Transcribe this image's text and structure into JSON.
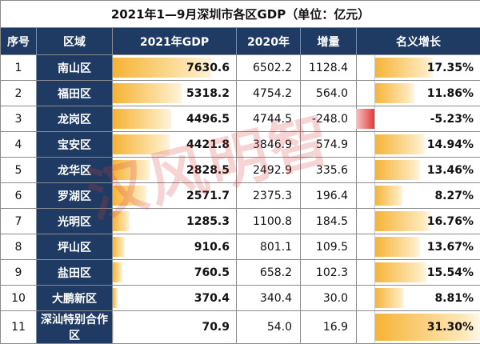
{
  "title": "2021年1—9月深圳市各区GDP（单位：亿元）",
  "headers": {
    "index": "序号",
    "region": "区域",
    "gdp2021": "2021年GDP",
    "gdp2020": "2020年",
    "increase": "增量",
    "growth": "名义增长"
  },
  "watermark": "汉风明智",
  "colors": {
    "header_bg": "#1f3b63",
    "bar_orange": "#f6b335",
    "negative_red": "#e23b3b"
  },
  "rows": [
    {
      "idx": "1",
      "region": "南山区",
      "gdp2021": "7630.6",
      "gdp2020": "6502.2",
      "increase": "1128.4",
      "growth": "17.35%",
      "gdp_value": 7630.6,
      "growth_value": 17.35
    },
    {
      "idx": "2",
      "region": "福田区",
      "gdp2021": "5318.2",
      "gdp2020": "4754.2",
      "increase": "564.0",
      "growth": "11.86%",
      "gdp_value": 5318.2,
      "growth_value": 11.86
    },
    {
      "idx": "3",
      "region": "龙岗区",
      "gdp2021": "4496.5",
      "gdp2020": "4744.5",
      "increase": "-248.0",
      "growth": "-5.23%",
      "gdp_value": 4496.5,
      "growth_value": -5.23
    },
    {
      "idx": "4",
      "region": "宝安区",
      "gdp2021": "4421.8",
      "gdp2020": "3846.9",
      "increase": "574.9",
      "growth": "14.94%",
      "gdp_value": 4421.8,
      "growth_value": 14.94
    },
    {
      "idx": "5",
      "region": "龙华区",
      "gdp2021": "2828.5",
      "gdp2020": "2492.9",
      "increase": "335.6",
      "growth": "13.46%",
      "gdp_value": 2828.5,
      "growth_value": 13.46
    },
    {
      "idx": "6",
      "region": "罗湖区",
      "gdp2021": "2571.7",
      "gdp2020": "2375.3",
      "increase": "196.4",
      "growth": "8.27%",
      "gdp_value": 2571.7,
      "growth_value": 8.27
    },
    {
      "idx": "7",
      "region": "光明区",
      "gdp2021": "1285.3",
      "gdp2020": "1100.8",
      "increase": "184.5",
      "growth": "16.76%",
      "gdp_value": 1285.3,
      "growth_value": 16.76
    },
    {
      "idx": "8",
      "region": "坪山区",
      "gdp2021": "910.6",
      "gdp2020": "801.1",
      "increase": "109.5",
      "growth": "13.67%",
      "gdp_value": 910.6,
      "growth_value": 13.67
    },
    {
      "idx": "9",
      "region": "盐田区",
      "gdp2021": "760.5",
      "gdp2020": "658.2",
      "increase": "102.3",
      "growth": "15.54%",
      "gdp_value": 760.5,
      "growth_value": 15.54
    },
    {
      "idx": "10",
      "region": "大鹏新区",
      "gdp2021": "370.4",
      "gdp2020": "340.4",
      "increase": "30.0",
      "growth": "8.81%",
      "gdp_value": 370.4,
      "growth_value": 8.81
    },
    {
      "idx": "11",
      "region": "深汕特别合作区",
      "gdp2021": "70.9",
      "gdp2020": "54.0",
      "increase": "16.9",
      "growth": "31.30%",
      "gdp_value": 70.9,
      "growth_value": 31.3
    }
  ]
}
